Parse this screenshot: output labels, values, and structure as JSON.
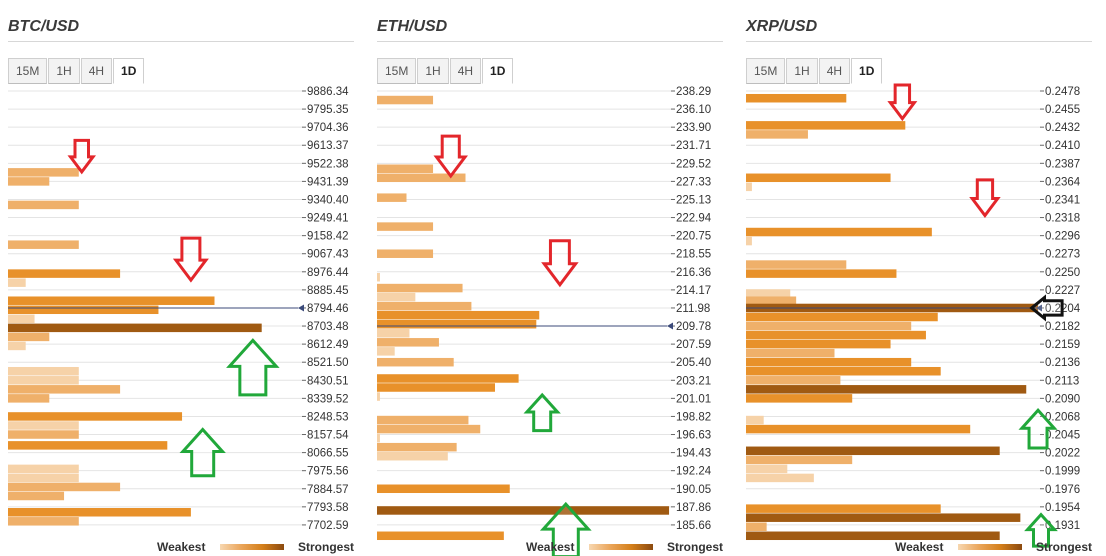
{
  "legend": {
    "weakest": "Weakest",
    "strongest": "Strongest"
  },
  "colors": {
    "bar_strong": "#a05a12",
    "bar_medium": "#e8912a",
    "bar_light": "#efb06a",
    "bar_pale": "#f6d2a8",
    "arrow_down": "#e3262b",
    "arrow_up": "#21a83a",
    "arrow_current": "#111111",
    "price_line": "#3b4a7a"
  },
  "panels": [
    {
      "title": "BTC/USD",
      "tabs": [
        "15M",
        "1H",
        "4H",
        "1D"
      ],
      "active_tab": "1D",
      "current_price_level": "8794.46",
      "levels": [
        "9886.34",
        "9795.35",
        "9704.36",
        "9613.37",
        "9522.38",
        "9431.39",
        "9340.40",
        "9249.41",
        "9158.42",
        "9067.43",
        "8976.44",
        "8885.45",
        "8794.46",
        "8703.48",
        "8612.49",
        "8521.50",
        "8430.51",
        "8339.52",
        "8248.53",
        "8157.54",
        "8066.55",
        "7975.56",
        "7884.57",
        "7793.58",
        "7702.59"
      ],
      "bars": [
        {
          "level_index": 4.5,
          "strength": 0.24,
          "color": "light"
        },
        {
          "level_index": 5.0,
          "strength": 0.14,
          "color": "light"
        },
        {
          "level_index": 6.3,
          "strength": 0.24,
          "color": "light"
        },
        {
          "level_index": 8.5,
          "strength": 0.24,
          "color": "light"
        },
        {
          "level_index": 10.1,
          "strength": 0.38,
          "color": "medium"
        },
        {
          "level_index": 10.6,
          "strength": 0.06,
          "color": "pale"
        },
        {
          "level_index": 11.6,
          "strength": 0.7,
          "color": "medium"
        },
        {
          "level_index": 12.1,
          "strength": 0.51,
          "color": "medium"
        },
        {
          "level_index": 12.6,
          "strength": 0.09,
          "color": "pale"
        },
        {
          "level_index": 13.1,
          "strength": 0.86,
          "color": "strong"
        },
        {
          "level_index": 13.6,
          "strength": 0.14,
          "color": "light"
        },
        {
          "level_index": 14.1,
          "strength": 0.06,
          "color": "pale"
        },
        {
          "level_index": 15.5,
          "strength": 0.24,
          "color": "pale"
        },
        {
          "level_index": 16.0,
          "strength": 0.24,
          "color": "pale"
        },
        {
          "level_index": 16.5,
          "strength": 0.38,
          "color": "light"
        },
        {
          "level_index": 17.0,
          "strength": 0.14,
          "color": "light"
        },
        {
          "level_index": 18.0,
          "strength": 0.59,
          "color": "medium"
        },
        {
          "level_index": 18.5,
          "strength": 0.24,
          "color": "pale"
        },
        {
          "level_index": 19.0,
          "strength": 0.24,
          "color": "light"
        },
        {
          "level_index": 19.6,
          "strength": 0.54,
          "color": "medium"
        },
        {
          "level_index": 20.9,
          "strength": 0.24,
          "color": "pale"
        },
        {
          "level_index": 21.4,
          "strength": 0.24,
          "color": "pale"
        },
        {
          "level_index": 21.9,
          "strength": 0.38,
          "color": "light"
        },
        {
          "level_index": 22.4,
          "strength": 0.19,
          "color": "light"
        },
        {
          "level_index": 23.3,
          "strength": 0.62,
          "color": "medium"
        },
        {
          "level_index": 23.8,
          "strength": 0.24,
          "color": "light"
        }
      ],
      "arrows": [
        {
          "direction": "down",
          "level_index": 3.6,
          "pos": 0.25,
          "size": 0.75
        },
        {
          "direction": "down",
          "level_index": 9.3,
          "pos": 0.62,
          "size": 1.0
        },
        {
          "direction": "up",
          "level_index": 15.3,
          "pos": 0.83,
          "size": 1.3
        },
        {
          "direction": "up",
          "level_index": 20.0,
          "pos": 0.66,
          "size": 1.1
        }
      ]
    },
    {
      "title": "ETH/USD",
      "tabs": [
        "15M",
        "1H",
        "4H",
        "1D"
      ],
      "active_tab": "1D",
      "current_price_level": "209.78",
      "levels": [
        "238.29",
        "236.10",
        "233.90",
        "231.71",
        "229.52",
        "227.33",
        "225.13",
        "222.94",
        "220.75",
        "218.55",
        "216.36",
        "214.17",
        "211.98",
        "209.78",
        "207.59",
        "205.40",
        "203.21",
        "201.01",
        "198.82",
        "196.63",
        "194.43",
        "192.24",
        "190.05",
        "187.86",
        "185.66"
      ],
      "bars": [
        {
          "level_index": 0.5,
          "strength": 0.19,
          "color": "light"
        },
        {
          "level_index": 4.3,
          "strength": 0.19,
          "color": "light"
        },
        {
          "level_index": 4.8,
          "strength": 0.3,
          "color": "light"
        },
        {
          "level_index": 5.9,
          "strength": 0.1,
          "color": "light"
        },
        {
          "level_index": 7.5,
          "strength": 0.19,
          "color": "light"
        },
        {
          "level_index": 9.0,
          "strength": 0.19,
          "color": "light"
        },
        {
          "level_index": 10.3,
          "strength": 0.01,
          "color": "pale"
        },
        {
          "level_index": 10.9,
          "strength": 0.29,
          "color": "light"
        },
        {
          "level_index": 11.4,
          "strength": 0.13,
          "color": "pale"
        },
        {
          "level_index": 11.9,
          "strength": 0.32,
          "color": "light"
        },
        {
          "level_index": 12.4,
          "strength": 0.55,
          "color": "medium"
        },
        {
          "level_index": 12.9,
          "strength": 0.54,
          "color": "medium"
        },
        {
          "level_index": 13.4,
          "strength": 0.11,
          "color": "pale"
        },
        {
          "level_index": 13.9,
          "strength": 0.21,
          "color": "light"
        },
        {
          "level_index": 14.4,
          "strength": 0.06,
          "color": "pale"
        },
        {
          "level_index": 15.0,
          "strength": 0.26,
          "color": "light"
        },
        {
          "level_index": 15.9,
          "strength": 0.48,
          "color": "medium"
        },
        {
          "level_index": 16.4,
          "strength": 0.4,
          "color": "medium"
        },
        {
          "level_index": 16.9,
          "strength": 0.01,
          "color": "pale"
        },
        {
          "level_index": 18.2,
          "strength": 0.31,
          "color": "light"
        },
        {
          "level_index": 18.7,
          "strength": 0.35,
          "color": "light"
        },
        {
          "level_index": 19.2,
          "strength": 0.01,
          "color": "pale"
        },
        {
          "level_index": 19.7,
          "strength": 0.27,
          "color": "light"
        },
        {
          "level_index": 20.2,
          "strength": 0.24,
          "color": "pale"
        },
        {
          "level_index": 22.0,
          "strength": 0.45,
          "color": "medium"
        },
        {
          "level_index": 23.2,
          "strength": 0.99,
          "color": "strong"
        },
        {
          "level_index": 24.6,
          "strength": 0.43,
          "color": "medium"
        }
      ],
      "arrows": [
        {
          "direction": "down",
          "level_index": 3.6,
          "pos": 0.25,
          "size": 0.95
        },
        {
          "direction": "down",
          "level_index": 9.5,
          "pos": 0.62,
          "size": 1.05
        },
        {
          "direction": "up",
          "level_index": 17.8,
          "pos": 0.56,
          "size": 0.85
        },
        {
          "direction": "up",
          "level_index": 24.3,
          "pos": 0.64,
          "size": 1.25
        }
      ]
    },
    {
      "title": "XRP/USD",
      "tabs": [
        "15M",
        "1H",
        "4H",
        "1D"
      ],
      "active_tab": "1D",
      "current_price_level": "0.2204",
      "levels": [
        "0.2478",
        "0.2455",
        "0.2432",
        "0.2410",
        "0.2387",
        "0.2364",
        "0.2341",
        "0.2318",
        "0.2296",
        "0.2273",
        "0.2250",
        "0.2227",
        "0.2204",
        "0.2182",
        "0.2159",
        "0.2136",
        "0.2113",
        "0.2090",
        "0.2068",
        "0.2045",
        "0.2022",
        "0.1999",
        "0.1976",
        "0.1954",
        "0.1931"
      ],
      "bars": [
        {
          "level_index": 0.4,
          "strength": 0.34,
          "color": "medium"
        },
        {
          "level_index": 1.9,
          "strength": 0.54,
          "color": "medium"
        },
        {
          "level_index": 2.4,
          "strength": 0.21,
          "color": "light"
        },
        {
          "level_index": 4.8,
          "strength": 0.49,
          "color": "medium"
        },
        {
          "level_index": 5.3,
          "strength": 0.02,
          "color": "pale"
        },
        {
          "level_index": 7.8,
          "strength": 0.63,
          "color": "medium"
        },
        {
          "level_index": 8.3,
          "strength": 0.02,
          "color": "pale"
        },
        {
          "level_index": 9.6,
          "strength": 0.34,
          "color": "light"
        },
        {
          "level_index": 10.1,
          "strength": 0.51,
          "color": "medium"
        },
        {
          "level_index": 11.2,
          "strength": 0.15,
          "color": "pale"
        },
        {
          "level_index": 11.6,
          "strength": 0.17,
          "color": "light"
        },
        {
          "level_index": 12.0,
          "strength": 0.99,
          "color": "strong"
        },
        {
          "level_index": 12.5,
          "strength": 0.65,
          "color": "medium"
        },
        {
          "level_index": 13.0,
          "strength": 0.56,
          "color": "light"
        },
        {
          "level_index": 13.5,
          "strength": 0.61,
          "color": "medium"
        },
        {
          "level_index": 14.0,
          "strength": 0.49,
          "color": "medium"
        },
        {
          "level_index": 14.5,
          "strength": 0.3,
          "color": "light"
        },
        {
          "level_index": 15.0,
          "strength": 0.56,
          "color": "medium"
        },
        {
          "level_index": 15.5,
          "strength": 0.66,
          "color": "medium"
        },
        {
          "level_index": 16.0,
          "strength": 0.32,
          "color": "light"
        },
        {
          "level_index": 16.5,
          "strength": 0.95,
          "color": "strong"
        },
        {
          "level_index": 17.0,
          "strength": 0.36,
          "color": "medium"
        },
        {
          "level_index": 18.2,
          "strength": 0.06,
          "color": "pale"
        },
        {
          "level_index": 18.7,
          "strength": 0.76,
          "color": "medium"
        },
        {
          "level_index": 19.9,
          "strength": 0.86,
          "color": "strong"
        },
        {
          "level_index": 20.4,
          "strength": 0.36,
          "color": "light"
        },
        {
          "level_index": 20.9,
          "strength": 0.14,
          "color": "pale"
        },
        {
          "level_index": 21.4,
          "strength": 0.23,
          "color": "pale"
        },
        {
          "level_index": 23.1,
          "strength": 0.66,
          "color": "medium"
        },
        {
          "level_index": 23.6,
          "strength": 0.93,
          "color": "strong"
        },
        {
          "level_index": 24.1,
          "strength": 0.07,
          "color": "light"
        },
        {
          "level_index": 24.6,
          "strength": 0.86,
          "color": "strong"
        }
      ],
      "arrows": [
        {
          "direction": "down",
          "level_index": 0.6,
          "pos": 0.53,
          "size": 0.8
        },
        {
          "direction": "down",
          "level_index": 5.9,
          "pos": 0.81,
          "size": 0.85
        },
        {
          "direction": "left",
          "level_index": 12.0,
          "pos": 1.02,
          "size": 0.8
        },
        {
          "direction": "up",
          "level_index": 18.7,
          "pos": 0.99,
          "size": 0.9
        },
        {
          "direction": "up",
          "level_index": 24.3,
          "pos": 1.0,
          "size": 0.75
        }
      ]
    }
  ]
}
